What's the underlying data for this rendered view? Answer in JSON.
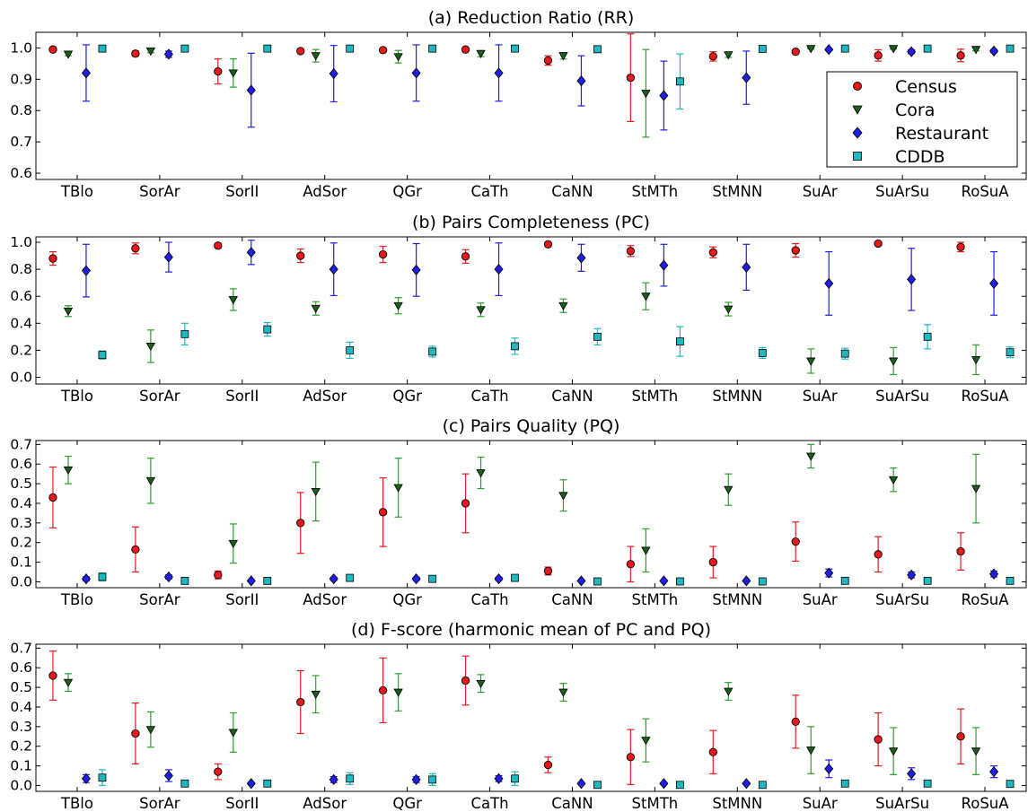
{
  "colors": {
    "Census": {
      "fill": "#e41a1c",
      "bar": "#e41a1c"
    },
    "Cora": {
      "fill": "#1a5e1a",
      "bar": "#2ca02c"
    },
    "Restaurant": {
      "fill": "#1f1fe0",
      "bar": "#1f1fe0"
    },
    "CDDB": {
      "fill": "#20b8c0",
      "bar": "#20b8c0"
    }
  },
  "legend": [
    "Census",
    "Cora",
    "Restaurant",
    "CDDB"
  ],
  "categories": [
    "TBlo",
    "SorAr",
    "SorII",
    "AdSor",
    "QGr",
    "CaTh",
    "CaNN",
    "StMTh",
    "StMNN",
    "SuAr",
    "SuArSu",
    "RoSuA"
  ],
  "chart_data": [
    {
      "type": "scatter",
      "title": "(a)  Reduction Ratio (RR)",
      "ylim": [
        0.58,
        1.05
      ],
      "yticks": [
        "0.6",
        "0.7",
        "0.8",
        "0.9",
        "1.0"
      ],
      "legend_position": "right",
      "series": [
        {
          "name": "Census",
          "values": [
            0.995,
            0.982,
            0.925,
            0.99,
            0.993,
            0.995,
            0.96,
            0.905,
            0.973,
            0.988,
            0.976,
            0.976
          ],
          "errors": [
            0.005,
            0.008,
            0.04,
            0.005,
            0.005,
            0.004,
            0.015,
            0.14,
            0.015,
            0.005,
            0.018,
            0.02
          ]
        },
        {
          "name": "Cora",
          "values": [
            0.98,
            0.99,
            0.92,
            0.975,
            0.972,
            0.982,
            0.975,
            0.855,
            0.978,
            0.998,
            0.998,
            0.995
          ],
          "errors": [
            0.005,
            0.005,
            0.045,
            0.02,
            0.02,
            0.01,
            0.01,
            0.14,
            0.008,
            0.002,
            0.002,
            0.004
          ]
        },
        {
          "name": "Restaurant",
          "values": [
            0.92,
            0.98,
            0.865,
            0.918,
            0.92,
            0.92,
            0.895,
            0.848,
            0.905,
            0.995,
            0.988,
            0.99
          ],
          "errors": [
            0.09,
            0.01,
            0.118,
            0.09,
            0.09,
            0.09,
            0.08,
            0.11,
            0.085,
            0.003,
            0.006,
            0.005
          ]
        },
        {
          "name": "CDDB",
          "values": [
            0.998,
            0.998,
            0.998,
            0.998,
            0.998,
            0.998,
            0.996,
            0.893,
            0.997,
            0.998,
            0.998,
            0.998
          ],
          "errors": [
            0.002,
            0.002,
            0.002,
            0.002,
            0.002,
            0.002,
            0.003,
            0.088,
            0.002,
            0.002,
            0.002,
            0.002
          ]
        }
      ]
    },
    {
      "type": "scatter",
      "title": "(b)  Pairs Completeness (PC)",
      "ylim": [
        -0.05,
        1.04
      ],
      "yticks": [
        "0.0",
        "0.2",
        "0.4",
        "0.6",
        "0.8",
        "1.0"
      ],
      "series": [
        {
          "name": "Census",
          "values": [
            0.88,
            0.955,
            0.975,
            0.9,
            0.91,
            0.895,
            0.985,
            0.935,
            0.925,
            0.94,
            0.99,
            0.965
          ],
          "errors": [
            0.05,
            0.04,
            0.015,
            0.05,
            0.06,
            0.05,
            0.008,
            0.04,
            0.04,
            0.05,
            0.005,
            0.035
          ]
        },
        {
          "name": "Cora",
          "values": [
            0.49,
            0.23,
            0.575,
            0.51,
            0.53,
            0.5,
            0.53,
            0.6,
            0.505,
            0.12,
            0.12,
            0.13
          ],
          "errors": [
            0.04,
            0.12,
            0.08,
            0.05,
            0.06,
            0.05,
            0.05,
            0.1,
            0.05,
            0.09,
            0.1,
            0.11
          ]
        },
        {
          "name": "Restaurant",
          "values": [
            0.79,
            0.89,
            0.925,
            0.8,
            0.795,
            0.8,
            0.885,
            0.83,
            0.815,
            0.695,
            0.725,
            0.695
          ],
          "errors": [
            0.195,
            0.11,
            0.09,
            0.195,
            0.195,
            0.195,
            0.1,
            0.155,
            0.17,
            0.235,
            0.23,
            0.235
          ]
        },
        {
          "name": "CDDB",
          "values": [
            0.165,
            0.32,
            0.355,
            0.2,
            0.19,
            0.23,
            0.3,
            0.265,
            0.18,
            0.175,
            0.3,
            0.185
          ],
          "errors": [
            0.03,
            0.08,
            0.05,
            0.06,
            0.04,
            0.06,
            0.06,
            0.11,
            0.04,
            0.04,
            0.09,
            0.04
          ]
        }
      ]
    },
    {
      "type": "scatter",
      "title": "(c)  Pairs Quality (PQ)",
      "ylim": [
        -0.03,
        0.72
      ],
      "yticks": [
        "0.0",
        "0.1",
        "0.2",
        "0.3",
        "0.4",
        "0.5",
        "0.6",
        "0.7"
      ],
      "series": [
        {
          "name": "Census",
          "values": [
            0.43,
            0.165,
            0.035,
            0.3,
            0.355,
            0.4,
            0.055,
            0.09,
            0.1,
            0.205,
            0.14,
            0.155
          ],
          "errors": [
            0.155,
            0.115,
            0.02,
            0.155,
            0.175,
            0.15,
            0.02,
            0.09,
            0.08,
            0.1,
            0.09,
            0.095
          ]
        },
        {
          "name": "Cora",
          "values": [
            0.57,
            0.515,
            0.195,
            0.46,
            0.48,
            0.555,
            0.44,
            0.16,
            0.47,
            0.64,
            0.52,
            0.475
          ],
          "errors": [
            0.07,
            0.115,
            0.1,
            0.15,
            0.15,
            0.08,
            0.08,
            0.11,
            0.08,
            0.06,
            0.06,
            0.175
          ]
        },
        {
          "name": "Restaurant",
          "values": [
            0.015,
            0.025,
            0.005,
            0.015,
            0.015,
            0.015,
            0.005,
            0.005,
            0.005,
            0.045,
            0.035,
            0.04
          ],
          "errors": [
            0.01,
            0.01,
            0.003,
            0.008,
            0.008,
            0.008,
            0.002,
            0.002,
            0.002,
            0.02,
            0.015,
            0.015
          ]
        },
        {
          "name": "CDDB",
          "values": [
            0.025,
            0.005,
            0.005,
            0.02,
            0.015,
            0.02,
            0.002,
            0.002,
            0.002,
            0.005,
            0.005,
            0.005
          ],
          "errors": [
            0.02,
            0.003,
            0.003,
            0.015,
            0.01,
            0.015,
            0.002,
            0.002,
            0.002,
            0.003,
            0.003,
            0.003
          ]
        }
      ]
    },
    {
      "type": "scatter",
      "title": "(d)  F-score (harmonic mean of PC and PQ)",
      "ylim": [
        -0.03,
        0.72
      ],
      "yticks": [
        "0.0",
        "0.1",
        "0.2",
        "0.3",
        "0.4",
        "0.5",
        "0.6",
        "0.7"
      ],
      "series": [
        {
          "name": "Census",
          "values": [
            0.56,
            0.265,
            0.07,
            0.425,
            0.485,
            0.535,
            0.105,
            0.145,
            0.17,
            0.325,
            0.235,
            0.25
          ],
          "errors": [
            0.125,
            0.155,
            0.04,
            0.16,
            0.165,
            0.125,
            0.04,
            0.14,
            0.11,
            0.135,
            0.135,
            0.14
          ]
        },
        {
          "name": "Cora",
          "values": [
            0.525,
            0.285,
            0.27,
            0.465,
            0.475,
            0.52,
            0.475,
            0.23,
            0.48,
            0.18,
            0.175,
            0.175
          ],
          "errors": [
            0.045,
            0.09,
            0.1,
            0.095,
            0.095,
            0.045,
            0.045,
            0.11,
            0.045,
            0.12,
            0.12,
            0.12
          ]
        },
        {
          "name": "Restaurant",
          "values": [
            0.035,
            0.05,
            0.01,
            0.03,
            0.03,
            0.035,
            0.01,
            0.01,
            0.01,
            0.085,
            0.06,
            0.07
          ],
          "errors": [
            0.02,
            0.03,
            0.005,
            0.015,
            0.015,
            0.015,
            0.005,
            0.005,
            0.005,
            0.045,
            0.03,
            0.03
          ]
        },
        {
          "name": "CDDB",
          "values": [
            0.04,
            0.01,
            0.01,
            0.035,
            0.03,
            0.035,
            0.003,
            0.003,
            0.003,
            0.01,
            0.01,
            0.008
          ],
          "errors": [
            0.04,
            0.006,
            0.006,
            0.03,
            0.03,
            0.035,
            0.003,
            0.003,
            0.003,
            0.006,
            0.006,
            0.005
          ]
        }
      ]
    }
  ]
}
